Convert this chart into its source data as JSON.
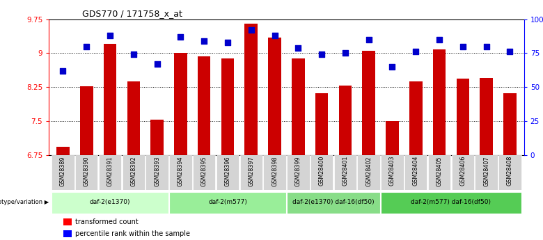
{
  "title": "GDS770 / 171758_x_at",
  "samples": [
    "GSM28389",
    "GSM28390",
    "GSM28391",
    "GSM28392",
    "GSM28393",
    "GSM28394",
    "GSM28395",
    "GSM28396",
    "GSM28397",
    "GSM28398",
    "GSM28399",
    "GSM28400",
    "GSM28401",
    "GSM28402",
    "GSM28403",
    "GSM28404",
    "GSM28405",
    "GSM28406",
    "GSM28407",
    "GSM28408"
  ],
  "bar_values": [
    6.92,
    8.27,
    9.21,
    8.38,
    7.52,
    9.0,
    8.93,
    8.88,
    9.65,
    9.35,
    8.88,
    8.12,
    8.28,
    9.05,
    7.5,
    8.38,
    9.08,
    8.43,
    8.45,
    8.12
  ],
  "dot_values": [
    62,
    80,
    88,
    74,
    67,
    87,
    84,
    83,
    92,
    88,
    79,
    74,
    75,
    85,
    65,
    76,
    85,
    80,
    80,
    76
  ],
  "ylim_left": [
    6.75,
    9.75
  ],
  "ylim_right": [
    0,
    100
  ],
  "yticks_left": [
    6.75,
    7.5,
    8.25,
    9.0,
    9.75
  ],
  "ytick_labels_left": [
    "6.75",
    "7.5",
    "8.25",
    "9",
    "9.75"
  ],
  "yticks_right": [
    0,
    25,
    50,
    75,
    100
  ],
  "ytick_labels_right": [
    "0",
    "25",
    "50",
    "75",
    "100%"
  ],
  "bar_color": "#cc0000",
  "dot_color": "#0000cc",
  "genotype_groups": [
    {
      "label": "daf-2(e1370)",
      "start": 0,
      "end": 4,
      "color": "#ccffcc"
    },
    {
      "label": "daf-2(m577)",
      "start": 5,
      "end": 9,
      "color": "#99ee99"
    },
    {
      "label": "daf-2(e1370) daf-16(df50)",
      "start": 10,
      "end": 13,
      "color": "#88dd88"
    },
    {
      "label": "daf-2(m577) daf-16(df50)",
      "start": 14,
      "end": 19,
      "color": "#55cc55"
    }
  ],
  "bar_width": 0.55,
  "dot_size": 28,
  "grid_dotted": [
    7.5,
    8.25,
    9.0
  ],
  "geno_label": "genotype/variation"
}
